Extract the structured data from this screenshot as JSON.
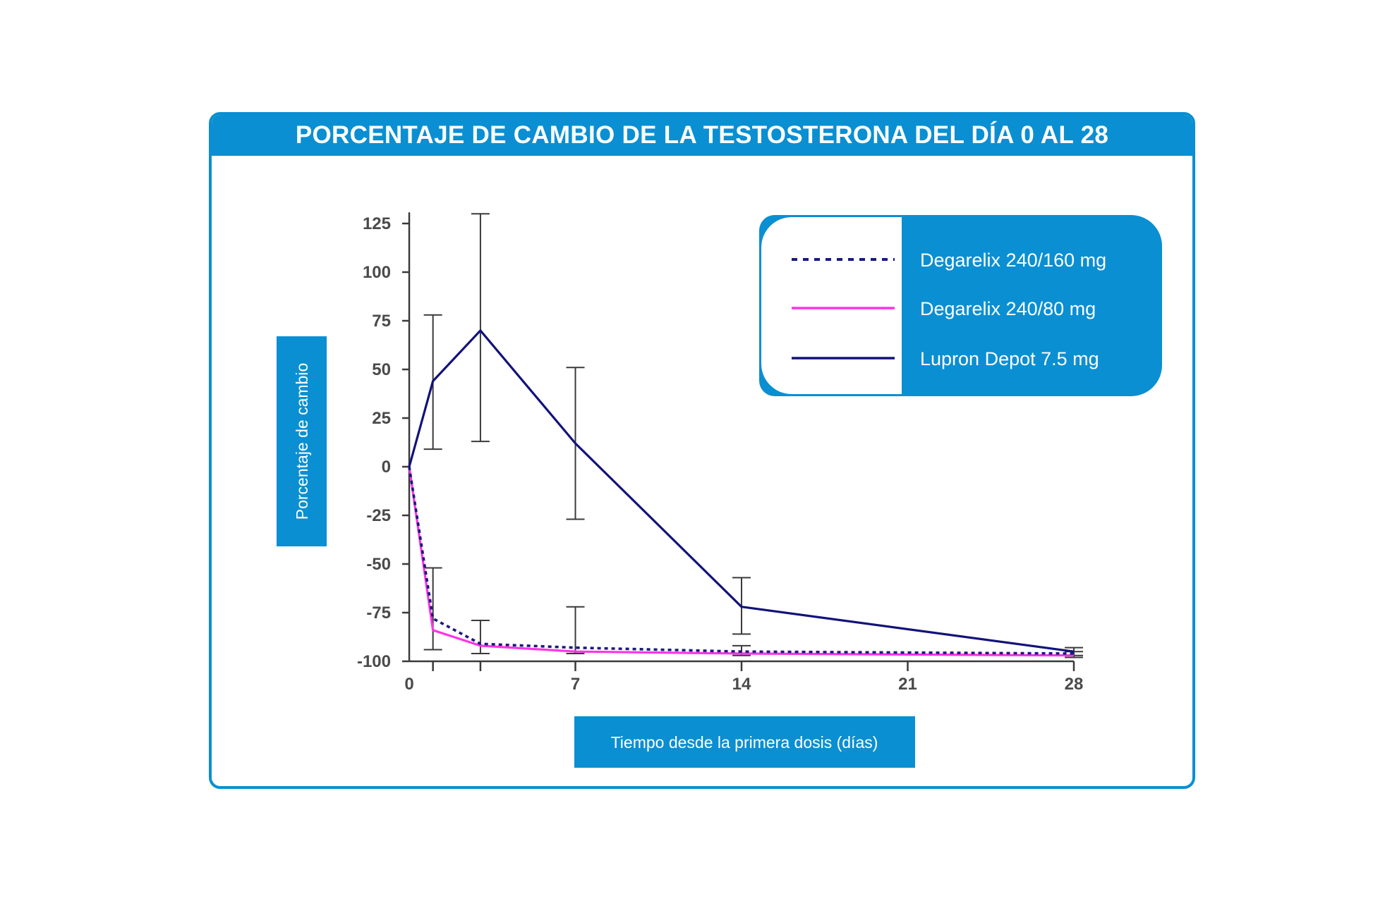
{
  "colors": {
    "accent": "#0a8fd2",
    "axis": "#3a3a3a",
    "tick_text": "#4a4a4a"
  },
  "chart_data": {
    "type": "line",
    "title": "PORCENTAJE DE CAMBIO DE LA TESTOSTERONA DEL DÍA 0 AL 28",
    "xlabel": "Tiempo desde la primera dosis (días)",
    "ylabel": "Porcentaje de cambio",
    "xlim": [
      0,
      28
    ],
    "ylim": [
      -100,
      130
    ],
    "xticks": [
      0,
      7,
      14,
      21,
      28
    ],
    "yticks": [
      125,
      100,
      75,
      50,
      25,
      0,
      -25,
      -50,
      -75,
      -100
    ],
    "legend_position": "top-right",
    "series": [
      {
        "name": "Degarelix 240/160 mg",
        "color": "#1a1a7e",
        "style": "dotted",
        "points": [
          [
            0,
            0
          ],
          [
            1,
            -78
          ],
          [
            3,
            -91
          ],
          [
            7,
            -93
          ],
          [
            14,
            -95
          ],
          [
            28,
            -96
          ]
        ],
        "error_bars": [
          [
            1,
            -94,
            -52
          ],
          [
            3,
            -96,
            -79
          ],
          [
            7,
            -96,
            -72
          ],
          [
            14,
            -97,
            -92
          ],
          [
            28,
            -97,
            -95
          ]
        ]
      },
      {
        "name": "Degarelix 240/80 mg",
        "color": "#ff33e6",
        "style": "solid",
        "points": [
          [
            0,
            0
          ],
          [
            1,
            -84
          ],
          [
            3,
            -92
          ],
          [
            7,
            -95
          ],
          [
            14,
            -96
          ],
          [
            28,
            -97
          ]
        ],
        "error_bars": []
      },
      {
        "name": "Lupron Depot 7.5 mg",
        "color": "#12127a",
        "style": "solid",
        "points": [
          [
            0,
            0
          ],
          [
            1,
            44
          ],
          [
            3,
            70
          ],
          [
            7,
            12
          ],
          [
            14,
            -72
          ],
          [
            28,
            -95
          ]
        ],
        "error_bars": [
          [
            1,
            9,
            78
          ],
          [
            3,
            13,
            130
          ],
          [
            7,
            -27,
            51
          ],
          [
            14,
            -86,
            -57
          ],
          [
            28,
            -98,
            -93
          ]
        ]
      }
    ]
  }
}
